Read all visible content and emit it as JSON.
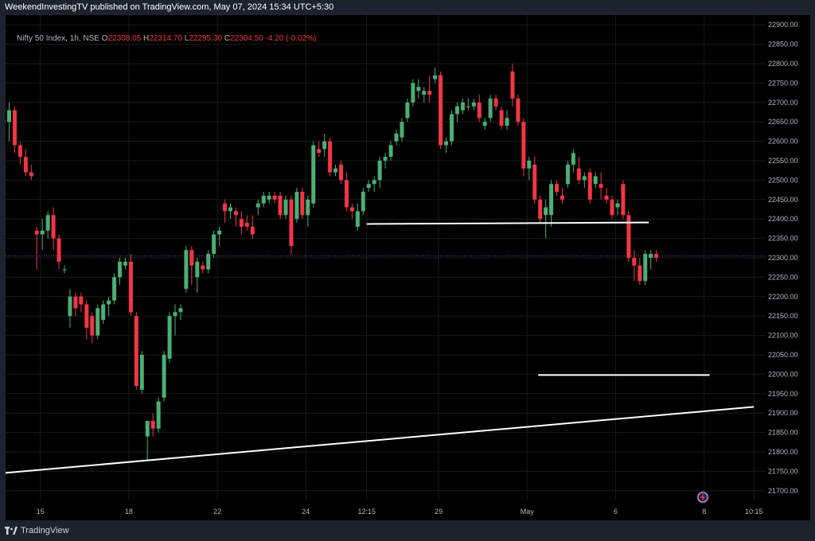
{
  "header": {
    "published": "WeekendInvestingTV published on TradingView.com, May 07, 2024 15:34 UTC+5:30"
  },
  "symbol": {
    "name": "Nifty 50 Index, 1h, NSE",
    "open_key": "O",
    "open": "22308.05",
    "high_key": "H",
    "high": "22314.70",
    "low_key": "L",
    "low": "22295.30",
    "close_key": "C",
    "close": "22304.50",
    "change": "-4.20 (-0.02%)"
  },
  "footer": {
    "brand": "TradingView"
  },
  "colors": {
    "background": "#000000",
    "frame": "#1e222d",
    "up": "#26a69a",
    "up_body": "#4caf72",
    "down": "#f23645",
    "line": "#ffffff",
    "current_price": "#7e57c2",
    "grid": "#1a1a1a"
  },
  "chart_data": {
    "type": "candlestick",
    "ylim": [
      21675,
      22925
    ],
    "y_ticks": [
      21700,
      21750,
      21800,
      21850,
      21900,
      21950,
      22000,
      22050,
      22100,
      22150,
      22200,
      22250,
      22300,
      22350,
      22400,
      22450,
      22500,
      22550,
      22600,
      22650,
      22700,
      22750,
      22800,
      22850,
      22900
    ],
    "x_labels": [
      {
        "label": "15",
        "idx": 6
      },
      {
        "label": "18",
        "idx": 22
      },
      {
        "label": "22",
        "idx": 38
      },
      {
        "label": "24",
        "idx": 54
      },
      {
        "label": "12:15",
        "idx": 65
      },
      {
        "label": "29",
        "idx": 78
      },
      {
        "label": "May",
        "idx": 94
      },
      {
        "label": "6",
        "idx": 110
      },
      {
        "label": "8",
        "idx": 126
      },
      {
        "label": "10:15",
        "idx": 135
      }
    ],
    "current_price": 22304.5,
    "candles": [
      [
        22650,
        22700,
        22600,
        22680
      ],
      [
        22680,
        22690,
        22570,
        22590
      ],
      [
        22590,
        22600,
        22540,
        22560
      ],
      [
        22560,
        22580,
        22510,
        22520
      ],
      [
        22520,
        22540,
        22500,
        22510
      ],
      [
        22370,
        22380,
        22270,
        22360
      ],
      [
        22360,
        22400,
        22320,
        22370
      ],
      [
        22370,
        22420,
        22350,
        22410
      ],
      [
        22410,
        22430,
        22320,
        22350
      ],
      [
        22350,
        22360,
        22270,
        22290
      ],
      [
        22270,
        22280,
        22260,
        22270
      ],
      [
        22150,
        22220,
        22120,
        22200
      ],
      [
        22200,
        22210,
        22150,
        22170
      ],
      [
        22200,
        22210,
        22160,
        22180
      ],
      [
        22180,
        22190,
        22090,
        22120
      ],
      [
        22150,
        22160,
        22080,
        22100
      ],
      [
        22100,
        22180,
        22090,
        22170
      ],
      [
        22140,
        22190,
        22130,
        22180
      ],
      [
        22180,
        22200,
        22150,
        22190
      ],
      [
        22190,
        22260,
        22180,
        22250
      ],
      [
        22250,
        22300,
        22230,
        22290
      ],
      [
        22280,
        22300,
        22270,
        22290
      ],
      [
        22290,
        22310,
        22150,
        22160
      ],
      [
        22150,
        22160,
        21960,
        21970
      ],
      [
        21960,
        22060,
        21950,
        22050
      ],
      [
        21840,
        21880,
        21780,
        21880
      ],
      [
        21880,
        21900,
        21840,
        21860
      ],
      [
        21860,
        21940,
        21850,
        21930
      ],
      [
        21940,
        22060,
        21930,
        22050
      ],
      [
        22040,
        22160,
        22030,
        22150
      ],
      [
        22150,
        22180,
        22100,
        22160
      ],
      [
        22160,
        22180,
        22140,
        22170
      ],
      [
        22220,
        22330,
        22210,
        22320
      ],
      [
        22320,
        22330,
        22230,
        22280
      ],
      [
        22250,
        22300,
        22210,
        22290
      ],
      [
        22280,
        22290,
        22260,
        22270
      ],
      [
        22270,
        22320,
        22260,
        22310
      ],
      [
        22310,
        22370,
        22300,
        22360
      ],
      [
        22360,
        22380,
        22330,
        22370
      ],
      [
        22440,
        22450,
        22390,
        22420
      ],
      [
        22420,
        22440,
        22400,
        22430
      ],
      [
        22420,
        22430,
        22380,
        22410
      ],
      [
        22400,
        22420,
        22360,
        22380
      ],
      [
        22390,
        22410,
        22370,
        22380
      ],
      [
        22380,
        22410,
        22350,
        22360
      ],
      [
        22430,
        22450,
        22410,
        22440
      ],
      [
        22440,
        22470,
        22430,
        22460
      ],
      [
        22450,
        22470,
        22440,
        22460
      ],
      [
        22460,
        22470,
        22440,
        22450
      ],
      [
        22460,
        22470,
        22400,
        22410
      ],
      [
        22410,
        22460,
        22400,
        22450
      ],
      [
        22450,
        22460,
        22310,
        22330
      ],
      [
        22400,
        22480,
        22390,
        22470
      ],
      [
        22470,
        22480,
        22400,
        22410
      ],
      [
        22410,
        22460,
        22380,
        22450
      ],
      [
        22440,
        22600,
        22430,
        22590
      ],
      [
        22580,
        22600,
        22560,
        22570
      ],
      [
        22580,
        22620,
        22560,
        22600
      ],
      [
        22600,
        22610,
        22510,
        22520
      ],
      [
        22520,
        22540,
        22510,
        22530
      ],
      [
        22540,
        22550,
        22490,
        22500
      ],
      [
        22500,
        22520,
        22420,
        22430
      ],
      [
        22430,
        22440,
        22400,
        22420
      ],
      [
        22380,
        22440,
        22370,
        22420
      ],
      [
        22420,
        22480,
        22410,
        22470
      ],
      [
        22480,
        22500,
        22470,
        22490
      ],
      [
        22490,
        22510,
        22470,
        22500
      ],
      [
        22500,
        22560,
        22480,
        22550
      ],
      [
        22550,
        22570,
        22530,
        22560
      ],
      [
        22560,
        22600,
        22550,
        22590
      ],
      [
        22600,
        22630,
        22590,
        22620
      ],
      [
        22610,
        22660,
        22600,
        22650
      ],
      [
        22660,
        22710,
        22650,
        22700
      ],
      [
        22700,
        22760,
        22690,
        22750
      ],
      [
        22730,
        22760,
        22710,
        22740
      ],
      [
        22720,
        22740,
        22700,
        22730
      ],
      [
        22730,
        22770,
        22700,
        22720
      ],
      [
        22760,
        22790,
        22750,
        22770
      ],
      [
        22770,
        22780,
        22580,
        22590
      ],
      [
        22590,
        22610,
        22570,
        22600
      ],
      [
        22600,
        22680,
        22590,
        22670
      ],
      [
        22670,
        22700,
        22650,
        22690
      ],
      [
        22680,
        22710,
        22670,
        22700
      ],
      [
        22690,
        22710,
        22680,
        22690
      ],
      [
        22690,
        22710,
        22680,
        22700
      ],
      [
        22700,
        22720,
        22650,
        22660
      ],
      [
        22640,
        22660,
        22630,
        22650
      ],
      [
        22660,
        22720,
        22650,
        22710
      ],
      [
        22710,
        22720,
        22680,
        22690
      ],
      [
        22680,
        22690,
        22630,
        22640
      ],
      [
        22640,
        22680,
        22630,
        22660
      ],
      [
        22780,
        22800,
        22690,
        22710
      ],
      [
        22710,
        22720,
        22640,
        22650
      ],
      [
        22650,
        22660,
        22510,
        22530
      ],
      [
        22530,
        22560,
        22500,
        22550
      ],
      [
        22540,
        22560,
        22440,
        22450
      ],
      [
        22450,
        22460,
        22390,
        22400
      ],
      [
        22410,
        22450,
        22350,
        22430
      ],
      [
        22410,
        22500,
        22380,
        22490
      ],
      [
        22490,
        22500,
        22460,
        22470
      ],
      [
        22460,
        22480,
        22440,
        22450
      ],
      [
        22490,
        22550,
        22480,
        22540
      ],
      [
        22540,
        22580,
        22520,
        22570
      ],
      [
        22530,
        22560,
        22490,
        22500
      ],
      [
        22500,
        22520,
        22480,
        22510
      ],
      [
        22520,
        22530,
        22440,
        22450
      ],
      [
        22490,
        22520,
        22480,
        22510
      ],
      [
        22490,
        22520,
        22450,
        22480
      ],
      [
        22460,
        22480,
        22440,
        22450
      ],
      [
        22450,
        22460,
        22400,
        22410
      ],
      [
        22430,
        22450,
        22410,
        22440
      ],
      [
        22490,
        22500,
        22400,
        22410
      ],
      [
        22410,
        22420,
        22290,
        22300
      ],
      [
        22300,
        22320,
        22240,
        22280
      ],
      [
        22280,
        22300,
        22230,
        22240
      ],
      [
        22240,
        22320,
        22230,
        22310
      ],
      [
        22300,
        22320,
        22270,
        22310
      ],
      [
        22310,
        22320,
        22290,
        22300
      ]
    ],
    "trend_lines": [
      {
        "from": [
          65,
          22387
        ],
        "to": [
          116,
          22391
        ]
      },
      {
        "from": [
          96,
          21998
        ],
        "to": [
          127,
          21998
        ]
      },
      {
        "from": [
          -1,
          21745
        ],
        "to": [
          135,
          21916
        ]
      }
    ]
  }
}
